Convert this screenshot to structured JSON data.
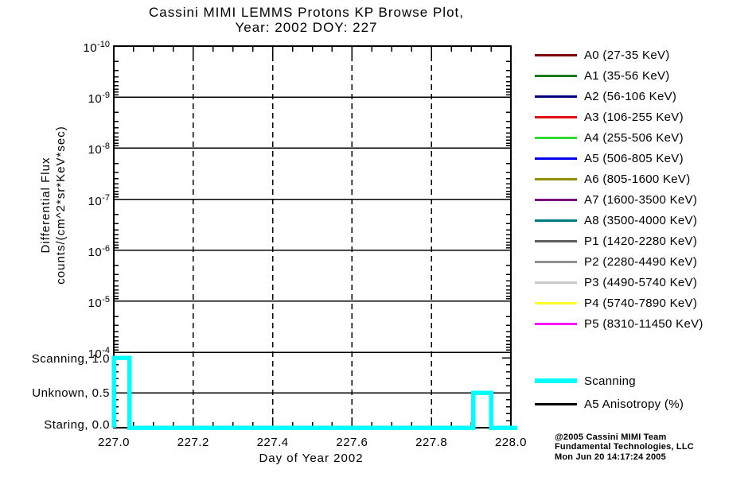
{
  "title": {
    "line1": "Cassini MIMI LEMMS Protons KP Browse Plot,",
    "line2": "Year: 2002 DOY: 227"
  },
  "chart_data": {
    "type": "line",
    "title": "Cassini MIMI LEMMS Protons KP Browse Plot, Year: 2002 DOY: 227",
    "xlabel": "Day of Year 2002",
    "ylabel_lines": [
      "Differential Flux",
      "counts/(cm^2*sr*KeV*sec)"
    ],
    "xlim": [
      227.0,
      228.0
    ],
    "x_tick_labels": [
      "227.0",
      "227.2",
      "227.4",
      "227.6",
      "227.8",
      "228.0"
    ],
    "x_major_step": 0.2,
    "x_minor_step": 0.05,
    "y_axis": {
      "scale": "log, 10^-10 at top to 10^-4 at bottom",
      "decade_exponents": [
        -10,
        -9,
        -8,
        -7,
        -6,
        -5,
        -4
      ]
    },
    "grid": {
      "horizontal": "solid line at every decade and at state value 0.5",
      "vertical_dashed_at": [
        227.2,
        227.4,
        227.6,
        227.8
      ]
    },
    "flux_series_plotted": [],
    "state_panel": {
      "series_name": "Scanning",
      "color": "#00FFFF",
      "levels": [
        {
          "label": "Scanning, 1.0",
          "value": 1.0
        },
        {
          "label": "Unknown, 0.5",
          "value": 0.5
        },
        {
          "label": "Staring, 0.0",
          "value": 0.0
        }
      ],
      "segments": [
        {
          "from": 227.0,
          "to": 227.04,
          "value": 1.0,
          "state": "Scanning"
        },
        {
          "from": 227.04,
          "to": 227.905,
          "value": 0.0,
          "state": "Staring"
        },
        {
          "from": 227.905,
          "to": 227.95,
          "value": 0.5,
          "state": "Unknown"
        },
        {
          "from": 227.95,
          "to": 228.0,
          "value": 0.0,
          "state": "Staring"
        }
      ]
    }
  },
  "legend": {
    "channels": [
      {
        "label": "A0 (27-35 KeV)",
        "color": "#7C0000"
      },
      {
        "label": "A1 (35-56 KeV)",
        "color": "#1B7A1B"
      },
      {
        "label": "A2 (56-106 KeV)",
        "color": "#00007C"
      },
      {
        "label": "A3 (106-255 KeV)",
        "color": "#E01010"
      },
      {
        "label": "A4 (255-506 KeV)",
        "color": "#35DB35"
      },
      {
        "label": "A5 (506-805 KeV)",
        "color": "#0000EE"
      },
      {
        "label": "A6 (805-1600 KeV)",
        "color": "#8F8F00"
      },
      {
        "label": "A7 (1600-3500 KeV)",
        "color": "#7C007C"
      },
      {
        "label": "A8 (3500-4000 KeV)",
        "color": "#007C7C"
      },
      {
        "label": "P1 (1420-2280 KeV)",
        "color": "#5E5E5E"
      },
      {
        "label": "P2 (2280-4490 KeV)",
        "color": "#8F8F8F"
      },
      {
        "label": "P3 (4490-5740 KeV)",
        "color": "#C9C9C9"
      },
      {
        "label": "P4 (5740-7890 KeV)",
        "color": "#FFFF2A"
      },
      {
        "label": "P5 (8310-11450 KeV)",
        "color": "#FA14FA"
      }
    ],
    "extras": [
      {
        "label": "Scanning",
        "color": "#00FFFF"
      },
      {
        "label": "A5 Anisotropy (%)",
        "color": "#000000"
      }
    ]
  },
  "footer": {
    "line1": "@2005 Cassini MIMI Team",
    "line2": "Fundamental Technologies, LLC",
    "line3": "Mon Jun 20 14:17:24 2005"
  }
}
